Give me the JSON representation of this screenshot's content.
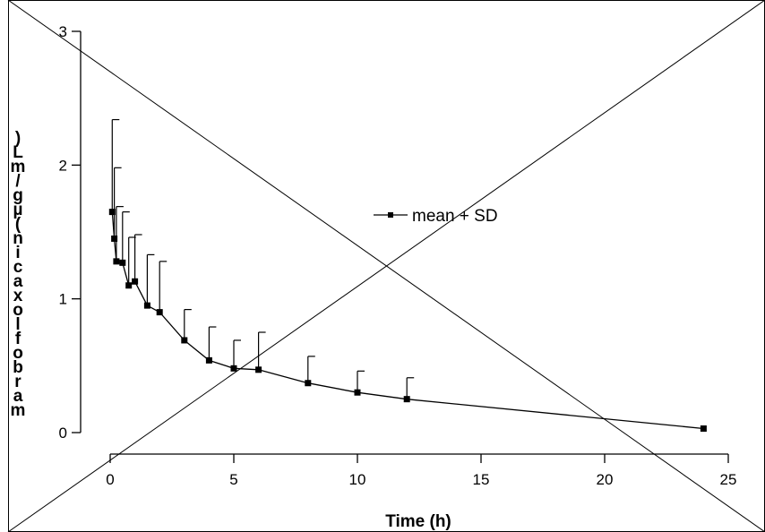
{
  "chart_data": {
    "type": "line",
    "xlabel": "Time (h)",
    "ylabel": "marbofloxacin (µg/mL)",
    "xlim": [
      0,
      25
    ],
    "ylim": [
      0,
      3
    ],
    "x_ticks": [
      "0",
      "5",
      "10",
      "15",
      "20",
      "25"
    ],
    "y_ticks": [
      "0",
      "1",
      "2",
      "3"
    ],
    "grid": false,
    "legend_position": "center",
    "series": [
      {
        "name": "mean + SD",
        "x": [
          0.083,
          0.167,
          0.25,
          0.5,
          0.75,
          1,
          1.5,
          2,
          3,
          4,
          5,
          6,
          8,
          10,
          12,
          24
        ],
        "y": [
          1.65,
          1.45,
          1.28,
          1.27,
          1.1,
          1.13,
          0.95,
          0.9,
          0.69,
          0.54,
          0.48,
          0.47,
          0.37,
          0.3,
          0.25,
          0.03
        ],
        "sd": [
          0.69,
          0.53,
          0.41,
          0.38,
          0.36,
          0.35,
          0.38,
          0.38,
          0.23,
          0.25,
          0.21,
          0.28,
          0.2,
          0.16,
          0.16,
          0.0
        ]
      }
    ]
  }
}
